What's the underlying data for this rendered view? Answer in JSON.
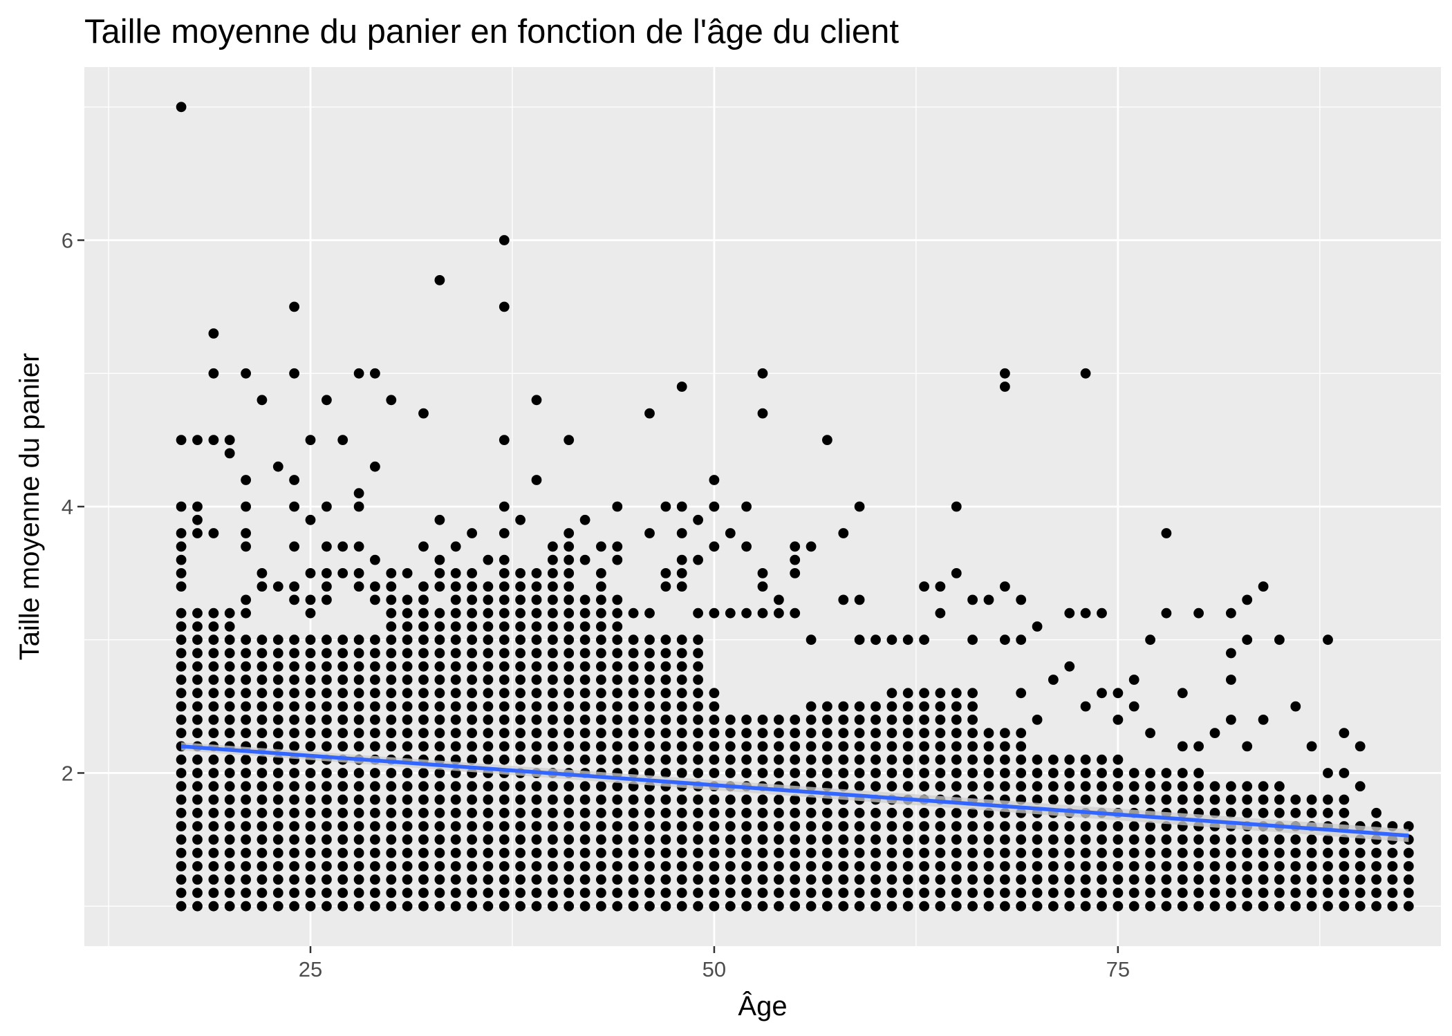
{
  "chart_data": {
    "type": "scatter",
    "title": "Taille moyenne du panier en fonction de l'âge du client",
    "xlabel": "Âge",
    "ylabel": "Taille moyenne du panier",
    "xlim": [
      11,
      95
    ],
    "ylim": [
      0.7,
      7.3
    ],
    "x_ticks": [
      25,
      50,
      75
    ],
    "y_ticks": [
      2,
      4,
      6
    ],
    "x_tick_labels": [
      "25",
      "50",
      "75"
    ],
    "y_tick_labels": [
      "2",
      "4",
      "6"
    ],
    "grid": true,
    "legend": "none",
    "colors": {
      "panel": "#ebebeb",
      "grid": "#ffffff",
      "points": "#000000",
      "trend": "#3366ff",
      "ribbon": "#cfcfcf",
      "tick_text": "#4d4d4d"
    },
    "dense_band": {
      "x_step": 1,
      "y_step": 0.1,
      "y_min": 1.0,
      "bands": [
        {
          "x_from": 17,
          "x_to": 20,
          "y_max": 3.2
        },
        {
          "x_from": 21,
          "x_to": 29,
          "y_max": 3.0
        },
        {
          "x_from": 30,
          "x_to": 33,
          "y_max": 3.2
        },
        {
          "x_from": 34,
          "x_to": 36,
          "y_max": 3.4
        },
        {
          "x_from": 37,
          "x_to": 41,
          "y_max": 3.5
        },
        {
          "x_from": 42,
          "x_to": 44,
          "y_max": 3.3
        },
        {
          "x_from": 45,
          "x_to": 49,
          "y_max": 3.0
        },
        {
          "x_from": 50,
          "x_to": 50,
          "y_max": 2.6
        },
        {
          "x_from": 51,
          "x_to": 55,
          "y_max": 2.4
        },
        {
          "x_from": 56,
          "x_to": 60,
          "y_max": 2.5
        },
        {
          "x_from": 61,
          "x_to": 66,
          "y_max": 2.6
        },
        {
          "x_from": 67,
          "x_to": 69,
          "y_max": 2.3
        },
        {
          "x_from": 70,
          "x_to": 75,
          "y_max": 2.1
        },
        {
          "x_from": 76,
          "x_to": 80,
          "y_max": 2.0
        },
        {
          "x_from": 81,
          "x_to": 85,
          "y_max": 1.9
        },
        {
          "x_from": 86,
          "x_to": 89,
          "y_max": 1.8
        },
        {
          "x_from": 90,
          "x_to": 93,
          "y_max": 1.6
        }
      ]
    },
    "points": [
      {
        "x": 17,
        "y": 7.0
      },
      {
        "x": 17,
        "y": 4.5
      },
      {
        "x": 17,
        "y": 4.0
      },
      {
        "x": 17,
        "y": 3.8
      },
      {
        "x": 17,
        "y": 3.7
      },
      {
        "x": 17,
        "y": 3.6
      },
      {
        "x": 17,
        "y": 3.5
      },
      {
        "x": 17,
        "y": 3.4
      },
      {
        "x": 18,
        "y": 4.5
      },
      {
        "x": 18,
        "y": 4.0
      },
      {
        "x": 18,
        "y": 3.9
      },
      {
        "x": 18,
        "y": 3.8
      },
      {
        "x": 19,
        "y": 5.3
      },
      {
        "x": 19,
        "y": 5.0
      },
      {
        "x": 19,
        "y": 4.5
      },
      {
        "x": 19,
        "y": 3.8
      },
      {
        "x": 20,
        "y": 4.5
      },
      {
        "x": 20,
        "y": 4.4
      },
      {
        "x": 21,
        "y": 5.0
      },
      {
        "x": 21,
        "y": 4.2
      },
      {
        "x": 21,
        "y": 4.0
      },
      {
        "x": 21,
        "y": 3.8
      },
      {
        "x": 21,
        "y": 3.7
      },
      {
        "x": 21,
        "y": 3.3
      },
      {
        "x": 21,
        "y": 3.2
      },
      {
        "x": 22,
        "y": 4.8
      },
      {
        "x": 22,
        "y": 3.5
      },
      {
        "x": 22,
        "y": 3.4
      },
      {
        "x": 23,
        "y": 4.3
      },
      {
        "x": 23,
        "y": 3.4
      },
      {
        "x": 24,
        "y": 5.5
      },
      {
        "x": 24,
        "y": 5.0
      },
      {
        "x": 24,
        "y": 4.2
      },
      {
        "x": 24,
        "y": 4.0
      },
      {
        "x": 24,
        "y": 3.7
      },
      {
        "x": 24,
        "y": 3.4
      },
      {
        "x": 24,
        "y": 3.3
      },
      {
        "x": 25,
        "y": 4.5
      },
      {
        "x": 25,
        "y": 3.9
      },
      {
        "x": 25,
        "y": 3.5
      },
      {
        "x": 25,
        "y": 3.3
      },
      {
        "x": 25,
        "y": 3.2
      },
      {
        "x": 26,
        "y": 4.8
      },
      {
        "x": 26,
        "y": 4.0
      },
      {
        "x": 26,
        "y": 3.7
      },
      {
        "x": 26,
        "y": 3.5
      },
      {
        "x": 26,
        "y": 3.4
      },
      {
        "x": 26,
        "y": 3.3
      },
      {
        "x": 27,
        "y": 4.5
      },
      {
        "x": 27,
        "y": 3.7
      },
      {
        "x": 27,
        "y": 3.5
      },
      {
        "x": 28,
        "y": 5.0
      },
      {
        "x": 28,
        "y": 4.1
      },
      {
        "x": 28,
        "y": 4.0
      },
      {
        "x": 28,
        "y": 3.7
      },
      {
        "x": 28,
        "y": 3.5
      },
      {
        "x": 28,
        "y": 3.4
      },
      {
        "x": 29,
        "y": 5.0
      },
      {
        "x": 29,
        "y": 4.3
      },
      {
        "x": 29,
        "y": 3.6
      },
      {
        "x": 29,
        "y": 3.4
      },
      {
        "x": 29,
        "y": 3.3
      },
      {
        "x": 30,
        "y": 4.8
      },
      {
        "x": 30,
        "y": 3.5
      },
      {
        "x": 30,
        "y": 3.4
      },
      {
        "x": 30,
        "y": 3.3
      },
      {
        "x": 31,
        "y": 3.5
      },
      {
        "x": 31,
        "y": 3.3
      },
      {
        "x": 32,
        "y": 4.7
      },
      {
        "x": 32,
        "y": 3.7
      },
      {
        "x": 32,
        "y": 3.4
      },
      {
        "x": 32,
        "y": 3.3
      },
      {
        "x": 33,
        "y": 5.7
      },
      {
        "x": 33,
        "y": 3.9
      },
      {
        "x": 33,
        "y": 3.6
      },
      {
        "x": 33,
        "y": 3.5
      },
      {
        "x": 33,
        "y": 3.4
      },
      {
        "x": 34,
        "y": 3.7
      },
      {
        "x": 34,
        "y": 3.5
      },
      {
        "x": 35,
        "y": 3.8
      },
      {
        "x": 35,
        "y": 3.5
      },
      {
        "x": 36,
        "y": 3.6
      },
      {
        "x": 37,
        "y": 6.0
      },
      {
        "x": 37,
        "y": 5.5
      },
      {
        "x": 37,
        "y": 4.5
      },
      {
        "x": 37,
        "y": 4.0
      },
      {
        "x": 37,
        "y": 3.8
      },
      {
        "x": 37,
        "y": 3.6
      },
      {
        "x": 38,
        "y": 3.9
      },
      {
        "x": 39,
        "y": 4.8
      },
      {
        "x": 39,
        "y": 4.2
      },
      {
        "x": 40,
        "y": 3.7
      },
      {
        "x": 40,
        "y": 3.6
      },
      {
        "x": 41,
        "y": 4.5
      },
      {
        "x": 41,
        "y": 3.8
      },
      {
        "x": 41,
        "y": 3.7
      },
      {
        "x": 41,
        "y": 3.6
      },
      {
        "x": 42,
        "y": 3.9
      },
      {
        "x": 42,
        "y": 3.6
      },
      {
        "x": 43,
        "y": 3.7
      },
      {
        "x": 43,
        "y": 3.5
      },
      {
        "x": 43,
        "y": 3.4
      },
      {
        "x": 44,
        "y": 4.0
      },
      {
        "x": 44,
        "y": 3.7
      },
      {
        "x": 44,
        "y": 3.6
      },
      {
        "x": 45,
        "y": 3.2
      },
      {
        "x": 46,
        "y": 4.7
      },
      {
        "x": 46,
        "y": 3.8
      },
      {
        "x": 46,
        "y": 3.2
      },
      {
        "x": 47,
        "y": 4.0
      },
      {
        "x": 47,
        "y": 3.5
      },
      {
        "x": 47,
        "y": 3.4
      },
      {
        "x": 48,
        "y": 4.9
      },
      {
        "x": 48,
        "y": 4.0
      },
      {
        "x": 48,
        "y": 3.8
      },
      {
        "x": 48,
        "y": 3.6
      },
      {
        "x": 48,
        "y": 3.5
      },
      {
        "x": 48,
        "y": 3.4
      },
      {
        "x": 49,
        "y": 3.9
      },
      {
        "x": 49,
        "y": 3.6
      },
      {
        "x": 49,
        "y": 3.2
      },
      {
        "x": 50,
        "y": 4.2
      },
      {
        "x": 50,
        "y": 4.0
      },
      {
        "x": 50,
        "y": 3.7
      },
      {
        "x": 50,
        "y": 3.2
      },
      {
        "x": 51,
        "y": 3.8
      },
      {
        "x": 51,
        "y": 3.2
      },
      {
        "x": 52,
        "y": 4.0
      },
      {
        "x": 52,
        "y": 3.7
      },
      {
        "x": 52,
        "y": 3.2
      },
      {
        "x": 53,
        "y": 5.0
      },
      {
        "x": 53,
        "y": 4.7
      },
      {
        "x": 53,
        "y": 3.5
      },
      {
        "x": 53,
        "y": 3.4
      },
      {
        "x": 53,
        "y": 3.2
      },
      {
        "x": 54,
        "y": 3.3
      },
      {
        "x": 54,
        "y": 3.2
      },
      {
        "x": 55,
        "y": 3.7
      },
      {
        "x": 55,
        "y": 3.6
      },
      {
        "x": 55,
        "y": 3.5
      },
      {
        "x": 55,
        "y": 3.2
      },
      {
        "x": 56,
        "y": 3.7
      },
      {
        "x": 56,
        "y": 3.0
      },
      {
        "x": 57,
        "y": 4.5
      },
      {
        "x": 58,
        "y": 3.8
      },
      {
        "x": 58,
        "y": 3.3
      },
      {
        "x": 59,
        "y": 4.0
      },
      {
        "x": 59,
        "y": 3.3
      },
      {
        "x": 59,
        "y": 3.0
      },
      {
        "x": 60,
        "y": 3.0
      },
      {
        "x": 61,
        "y": 3.0
      },
      {
        "x": 62,
        "y": 3.0
      },
      {
        "x": 63,
        "y": 3.4
      },
      {
        "x": 63,
        "y": 3.0
      },
      {
        "x": 64,
        "y": 3.4
      },
      {
        "x": 64,
        "y": 3.2
      },
      {
        "x": 65,
        "y": 4.0
      },
      {
        "x": 65,
        "y": 3.5
      },
      {
        "x": 66,
        "y": 3.3
      },
      {
        "x": 66,
        "y": 3.0
      },
      {
        "x": 67,
        "y": 3.3
      },
      {
        "x": 68,
        "y": 5.0
      },
      {
        "x": 68,
        "y": 4.9
      },
      {
        "x": 68,
        "y": 3.4
      },
      {
        "x": 68,
        "y": 3.0
      },
      {
        "x": 69,
        "y": 3.3
      },
      {
        "x": 69,
        "y": 3.0
      },
      {
        "x": 69,
        "y": 2.6
      },
      {
        "x": 70,
        "y": 3.1
      },
      {
        "x": 70,
        "y": 2.4
      },
      {
        "x": 71,
        "y": 2.7
      },
      {
        "x": 72,
        "y": 3.2
      },
      {
        "x": 72,
        "y": 2.8
      },
      {
        "x": 73,
        "y": 5.0
      },
      {
        "x": 73,
        "y": 3.2
      },
      {
        "x": 73,
        "y": 2.5
      },
      {
        "x": 74,
        "y": 3.2
      },
      {
        "x": 74,
        "y": 2.6
      },
      {
        "x": 75,
        "y": 2.6
      },
      {
        "x": 75,
        "y": 2.4
      },
      {
        "x": 76,
        "y": 2.7
      },
      {
        "x": 76,
        "y": 2.5
      },
      {
        "x": 77,
        "y": 3.0
      },
      {
        "x": 77,
        "y": 2.3
      },
      {
        "x": 78,
        "y": 3.8
      },
      {
        "x": 78,
        "y": 3.2
      },
      {
        "x": 79,
        "y": 2.6
      },
      {
        "x": 79,
        "y": 2.2
      },
      {
        "x": 80,
        "y": 3.2
      },
      {
        "x": 80,
        "y": 2.2
      },
      {
        "x": 81,
        "y": 2.3
      },
      {
        "x": 82,
        "y": 3.2
      },
      {
        "x": 82,
        "y": 2.9
      },
      {
        "x": 82,
        "y": 2.7
      },
      {
        "x": 82,
        "y": 2.4
      },
      {
        "x": 83,
        "y": 3.3
      },
      {
        "x": 83,
        "y": 3.0
      },
      {
        "x": 83,
        "y": 2.2
      },
      {
        "x": 84,
        "y": 3.4
      },
      {
        "x": 84,
        "y": 2.4
      },
      {
        "x": 85,
        "y": 3.0
      },
      {
        "x": 86,
        "y": 2.5
      },
      {
        "x": 87,
        "y": 2.2
      },
      {
        "x": 88,
        "y": 3.0
      },
      {
        "x": 88,
        "y": 2.0
      },
      {
        "x": 89,
        "y": 2.3
      },
      {
        "x": 89,
        "y": 2.0
      },
      {
        "x": 90,
        "y": 2.2
      },
      {
        "x": 90,
        "y": 1.9
      },
      {
        "x": 91,
        "y": 1.7
      },
      {
        "x": 92,
        "y": 1.4
      },
      {
        "x": 92,
        "y": 1.3
      }
    ],
    "trend_line": {
      "method": "linear",
      "x": [
        17,
        93
      ],
      "y": [
        2.2,
        1.53
      ],
      "ribbon_half_width": 0.03
    }
  }
}
